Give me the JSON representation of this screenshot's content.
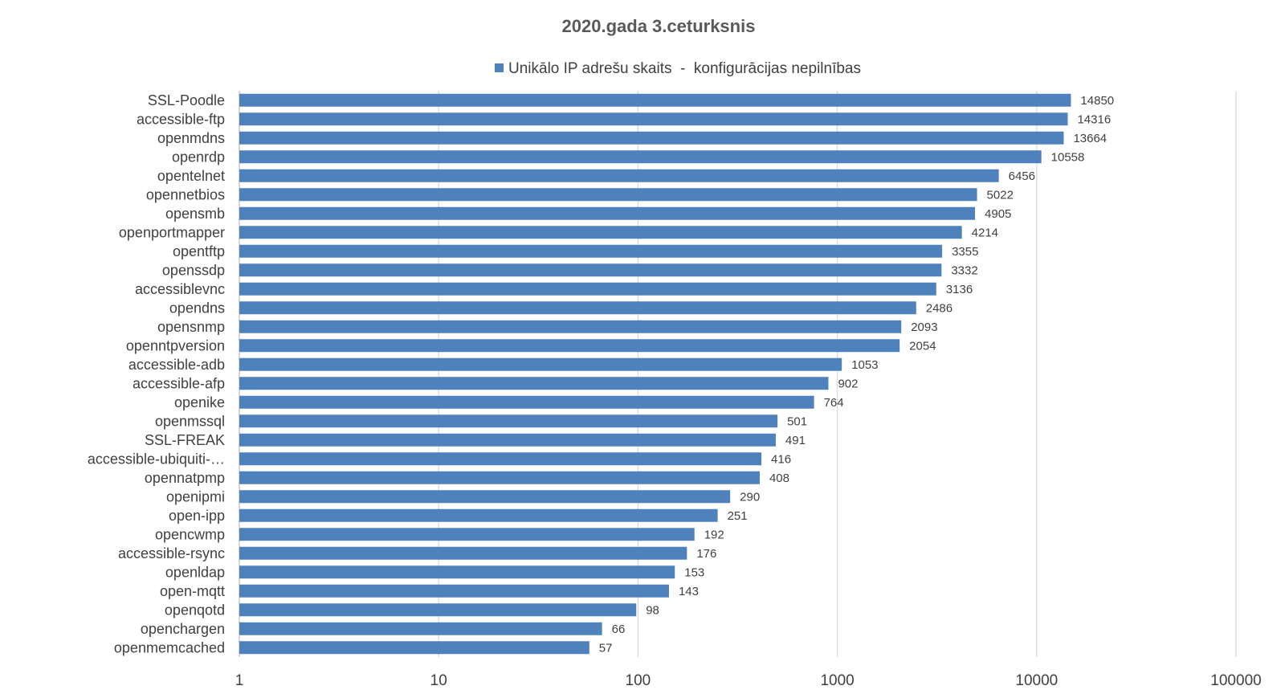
{
  "chart_data": {
    "type": "bar",
    "orientation": "horizontal",
    "title": "2020.gada 3.ceturksnis",
    "xscale": "log",
    "xlim": [
      1,
      100000
    ],
    "xticks": [
      "1",
      "10",
      "100",
      "1000",
      "10000",
      "100000"
    ],
    "grid": true,
    "legend_position": "top",
    "series": [
      {
        "name": "Unikālo IP adrešu skaits  -  konfigurācijas nepilnības",
        "color": "#4f81bd",
        "values": [
          14850,
          14316,
          13664,
          10558,
          6456,
          5022,
          4905,
          4214,
          3355,
          3332,
          3136,
          2486,
          2093,
          2054,
          1053,
          902,
          764,
          501,
          491,
          416,
          408,
          290,
          251,
          192,
          176,
          153,
          143,
          98,
          66,
          57
        ]
      }
    ],
    "categories": [
      "SSL-Poodle",
      "accessible-ftp",
      "openmdns",
      "openrdp",
      "opentelnet",
      "opennetbios",
      "opensmb",
      "openportmapper",
      "opentftp",
      "openssdp",
      "accessiblevnc",
      "opendns",
      "opensnmp",
      "openntpversion",
      "accessible-adb",
      "accessible-afp",
      "openike",
      "openmssql",
      "SSL-FREAK",
      "accessible-ubiquiti-…",
      "opennatpmp",
      "openipmi",
      "open-ipp",
      "opencwmp",
      "accessible-rsync",
      "openldap",
      "open-mqtt",
      "openqotd",
      "openchargen",
      "openmemcached"
    ]
  }
}
